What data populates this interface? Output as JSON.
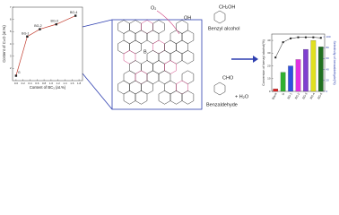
{
  "chart_data": [
    {
      "type": "line",
      "x_label": "Content of BC₃ (at.%)",
      "y_label": "Content of C=O (at.%)",
      "x": [
        0.0,
        0.32,
        0.68,
        1.15,
        1.7
      ],
      "series": [
        {
          "color": "#c0392b",
          "values": [
            1.4,
            4.6,
            5.2,
            5.6,
            6.3
          ],
          "point_labels": [
            "G",
            "BG-1",
            "BG-2",
            "BG-3",
            "BG-4"
          ]
        }
      ],
      "xlim": [
        -0.1,
        1.9
      ],
      "xticks": [
        {
          "value": 0,
          "label": "0.0"
        },
        {
          "value": 0.2,
          "label": "0.2"
        },
        {
          "value": 0.4,
          "label": "0.4"
        },
        {
          "value": 0.6,
          "label": "0.6"
        },
        {
          "value": 0.8,
          "label": "0.8"
        },
        {
          "value": 1,
          "label": "1.0"
        },
        {
          "value": 1.2,
          "label": "1.2"
        },
        {
          "value": 1.4,
          "label": "1.4"
        },
        {
          "value": 1.6,
          "label": "1.6"
        },
        {
          "value": 1.8,
          "label": "1.8"
        }
      ],
      "ylim": [
        1,
        7
      ],
      "yticks": [
        2,
        3,
        4,
        5,
        6,
        7
      ]
    },
    {
      "type": "bar",
      "y_label": "Conversion of benzyl alcohol(%)",
      "y2_label": "Selectivity of benzaldehyde(%)",
      "categories": [
        "Blank",
        "G",
        "BG-1",
        "BG-2",
        "BG-3",
        "BG-4",
        "BG-5"
      ],
      "series": [
        {
          "values": [
            2,
            15,
            20,
            25,
            33,
            40,
            35
          ],
          "colors": [
            "#e02020",
            "#30b030",
            "#3050e0",
            "#e030e0",
            "#8040d0",
            "#e0e020",
            "#207020"
          ]
        },
        {
          "type": "line",
          "axis": "y2",
          "color": "#222",
          "values": [
            62,
            90,
            97,
            99,
            99,
            99,
            98
          ]
        }
      ],
      "ylim": [
        0,
        45
      ],
      "yticks": [
        0,
        10,
        20,
        30,
        40
      ],
      "y2lim": [
        0,
        105
      ],
      "y2ticks": [
        0,
        20,
        40,
        60,
        80,
        100
      ]
    }
  ],
  "diagram": {
    "o2": "O₂",
    "oh": "OH",
    "ch2oh": "CH₂OH",
    "benzyl_alcohol": "Benzyl alcohol",
    "cho": "CHO",
    "benzaldehyde": "Benzaldehyde",
    "water": "+ H₂O",
    "boron": "B"
  }
}
